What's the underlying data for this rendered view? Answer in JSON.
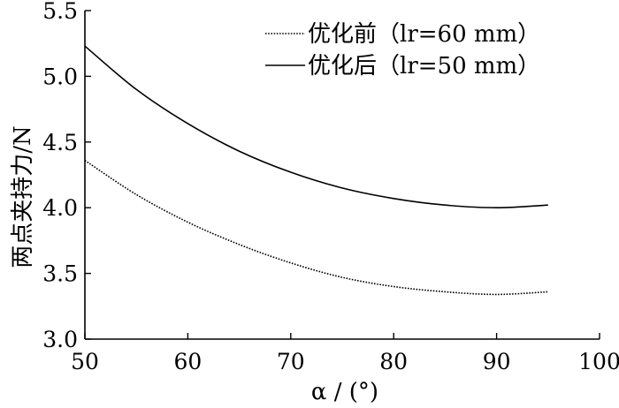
{
  "chart_data": {
    "type": "line",
    "title": "",
    "xlabel": "α / (°)",
    "ylabel": "两点夹持力/N",
    "xlim": [
      50,
      100
    ],
    "ylim": [
      3.0,
      5.5
    ],
    "xticks": [
      50,
      60,
      70,
      80,
      90,
      100
    ],
    "yticks": [
      3.0,
      3.5,
      4.0,
      4.5,
      5.0,
      5.5
    ],
    "xtick_labels": [
      "50",
      "60",
      "70",
      "80",
      "90",
      "100"
    ],
    "ytick_labels": [
      "3.0",
      "3.5",
      "4.0",
      "4.5",
      "5.0",
      "5.5"
    ],
    "grid": false,
    "legend_position": "top-right",
    "series": [
      {
        "name": "优化前（lr=60 mm）",
        "style": "dotted",
        "x": [
          50,
          55,
          60,
          65,
          70,
          75,
          80,
          85,
          90,
          95
        ],
        "y": [
          4.36,
          4.1,
          3.89,
          3.72,
          3.58,
          3.47,
          3.4,
          3.36,
          3.34,
          3.36
        ]
      },
      {
        "name": "优化后（lr=50 mm）",
        "style": "solid",
        "x": [
          50,
          55,
          60,
          65,
          70,
          75,
          80,
          85,
          90,
          95
        ],
        "y": [
          5.23,
          4.9,
          4.64,
          4.43,
          4.27,
          4.15,
          4.07,
          4.02,
          4.0,
          4.02
        ]
      }
    ]
  }
}
